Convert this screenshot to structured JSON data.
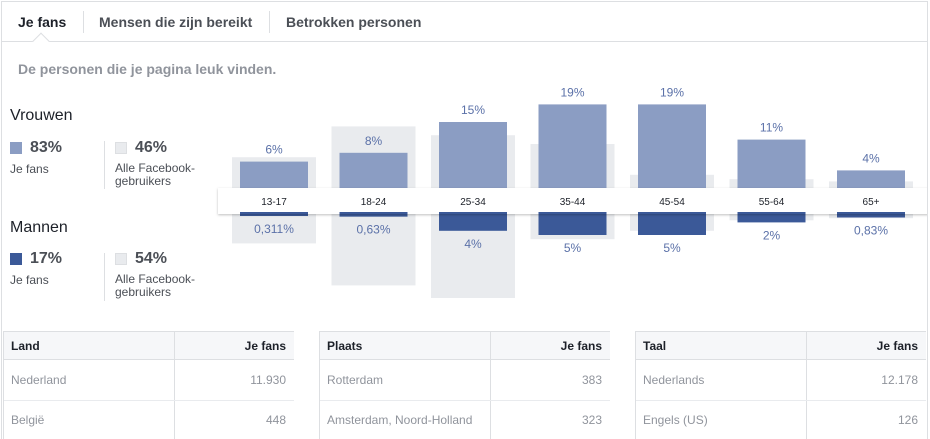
{
  "tabs": [
    {
      "label": "Je fans"
    },
    {
      "label": "Mensen die zijn bereikt"
    },
    {
      "label": "Betrokken personen"
    }
  ],
  "subtitle": "De personen die je pagina leuk vinden.",
  "women": {
    "title": "Vrouwen",
    "fans_pct": "83%",
    "fans_label": "Je fans",
    "all_pct": "46%",
    "all_label_1": "Alle Facebook-",
    "all_label_2": "gebruikers"
  },
  "men": {
    "title": "Mannen",
    "fans_pct": "17%",
    "fans_label": "Je fans",
    "all_pct": "54%",
    "all_label_1": "Alle Facebook-",
    "all_label_2": "gebruikers"
  },
  "colors": {
    "women_fans": "#8b9dc3",
    "men_fans": "#3b5998",
    "all_users": "#e9ebee",
    "women_label": "#5b71a8",
    "men_label": "#5b71a8"
  },
  "chart_data": {
    "type": "bar",
    "categories": [
      "13-17",
      "18-24",
      "25-34",
      "35-44",
      "45-54",
      "55-64",
      "65+"
    ],
    "women_fans": [
      6,
      8,
      15,
      19,
      19,
      11,
      4
    ],
    "women_fans_labels": [
      "6%",
      "8%",
      "15%",
      "19%",
      "19%",
      "11%",
      "4%"
    ],
    "men_fans": [
      0.311,
      0.63,
      4,
      5,
      5,
      2,
      0.83
    ],
    "men_fans_labels": [
      "0,311%",
      "0,63%",
      "4%",
      "5%",
      "5%",
      "2%",
      "0,83%"
    ],
    "women_all": [
      7,
      14,
      12,
      10,
      3,
      2,
      1.5
    ],
    "men_all": [
      7,
      17,
      20,
      6,
      4,
      1.5,
      1
    ]
  },
  "tables": [
    {
      "col1": "Land",
      "col2": "Je fans",
      "rows": [
        {
          "name": "Nederland",
          "value": "11.930"
        },
        {
          "name": "België",
          "value": "448"
        }
      ]
    },
    {
      "col1": "Plaats",
      "col2": "Je fans",
      "rows": [
        {
          "name": "Rotterdam",
          "value": "383"
        },
        {
          "name": "Amsterdam, Noord-Holland",
          "value": "323"
        }
      ]
    },
    {
      "col1": "Taal",
      "col2": "Je fans",
      "rows": [
        {
          "name": "Nederlands",
          "value": "12.178"
        },
        {
          "name": "Engels (US)",
          "value": "126"
        }
      ]
    }
  ]
}
